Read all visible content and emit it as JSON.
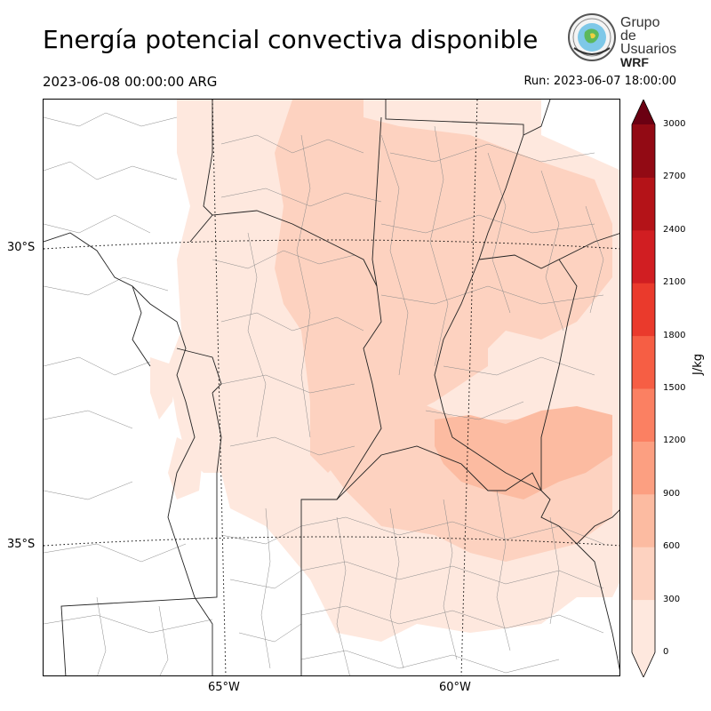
{
  "header": {
    "title": "Energía potencial convectiva disponible",
    "valid_time": "2023-06-08 00:00:00 ARG",
    "run_time": "Run: 2023-06-07 18:00:00"
  },
  "logo": {
    "line1": "Grupo de",
    "line2": "Usuarios",
    "line3": "WRF"
  },
  "map": {
    "variable": "CAPE",
    "lat_labels": [
      "30°S",
      "35°S"
    ],
    "lon_labels": [
      "65°W",
      "60°W"
    ],
    "colorbar": {
      "unit": "J/kg",
      "ticks": [
        "0",
        "300",
        "600",
        "900",
        "1200",
        "1500",
        "1800",
        "2100",
        "2400",
        "2700",
        "3000"
      ],
      "colors": [
        "#fee8de",
        "#fdd2c0",
        "#fcbba1",
        "#fc9f81",
        "#fb8062",
        "#f65e44",
        "#ea3a2c",
        "#d11e22",
        "#b41318",
        "#920a14",
        "#6b0012"
      ],
      "extend": "both"
    }
  }
}
